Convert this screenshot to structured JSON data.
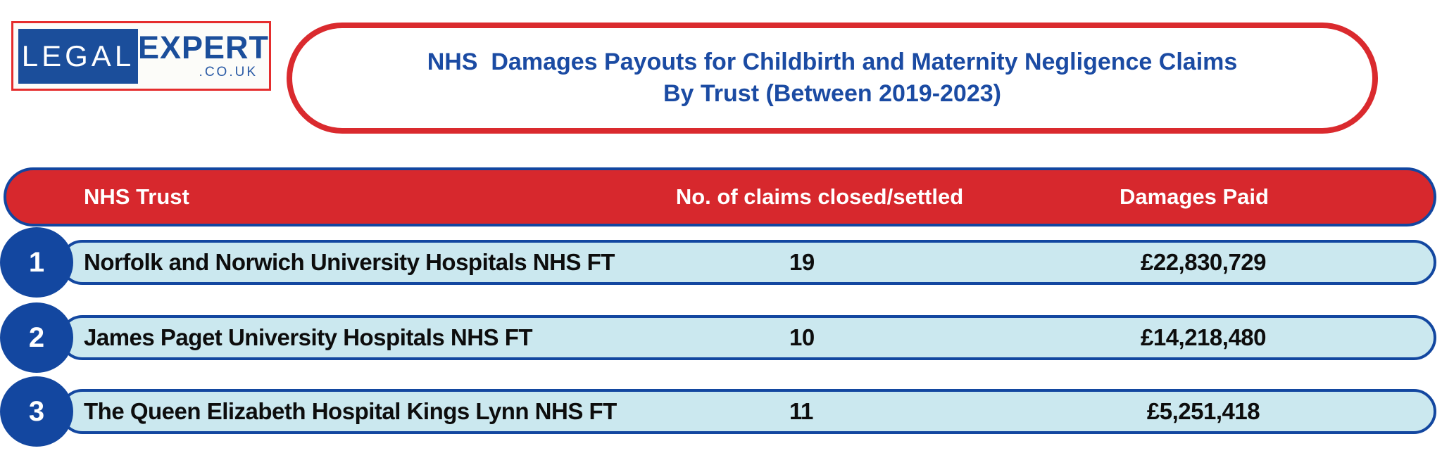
{
  "logo": {
    "legal": "LEGAL",
    "expert": "EXPERT",
    "domain": ".CO.UK"
  },
  "title": {
    "line1": "NHS  Damages Payouts for Childbirth and Maternity Negligence Claims",
    "line2": "By Trust (Between 2019-2023)"
  },
  "table": {
    "columns": [
      "NHS Trust",
      "No. of claims closed/settled",
      "Damages Paid"
    ],
    "rows": [
      {
        "rank": "1",
        "trust": "Norfolk and Norwich University Hospitals NHS FT",
        "claims": "19",
        "damages": "£22,830,729"
      },
      {
        "rank": "2",
        "trust": "James Paget University Hospitals NHS FT",
        "claims": "10",
        "damages": "£14,218,480"
      },
      {
        "rank": "3",
        "trust": "The Queen Elizabeth Hospital Kings Lynn NHS FT",
        "claims": "11",
        "damages": "£5,251,418"
      }
    ]
  },
  "colors": {
    "red": "#d7282d",
    "dark_blue": "#1347a0",
    "light_blue": "#cbe8ef",
    "title_blue": "#1b4ba3",
    "logo_blue": "#1b4e9b"
  },
  "chart_data": {
    "type": "table",
    "title": "NHS Damages Payouts for Childbirth and Maternity Negligence Claims By Trust (Between 2019-2023)",
    "columns": [
      "NHS Trust",
      "No. of claims closed/settled",
      "Damages Paid"
    ],
    "rows": [
      [
        "Norfolk and Norwich University Hospitals NHS FT",
        19,
        "£22,830,729"
      ],
      [
        "James Paget University Hospitals NHS FT",
        10,
        "£14,218,480"
      ],
      [
        "The Queen Elizabeth Hospital Kings Lynn NHS FT",
        11,
        "£5,251,418"
      ]
    ]
  }
}
